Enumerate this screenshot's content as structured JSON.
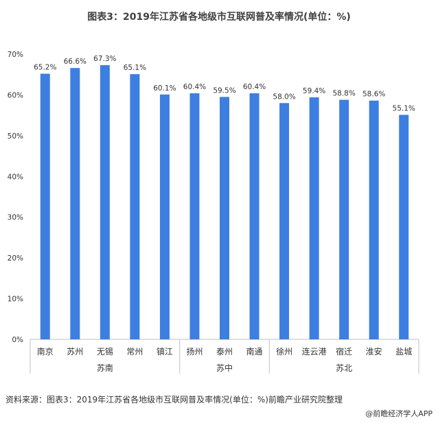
{
  "title": "图表3：2019年江苏省各地级市互联网普及率情况(单位：%)",
  "source": "资料来源：图表3：2019年江苏省各地级市互联网普及率情况(单位：%)前瞻产业研究院整理",
  "credit": "@前瞻经济学人APP",
  "colors": {
    "bar": "#3d7fe0",
    "axis": "#bfbfbf",
    "text": "#333333"
  },
  "chart_data": {
    "type": "bar",
    "title": "图表3：2019年江苏省各地级市互联网普及率情况(单位：%)",
    "categories": [
      "南京",
      "苏州",
      "无锡",
      "常州",
      "镇江",
      "扬州",
      "泰州",
      "南通",
      "徐州",
      "连云港",
      "宿迁",
      "淮安",
      "盐城"
    ],
    "values": [
      65.2,
      66.6,
      67.3,
      65.1,
      60.1,
      60.4,
      59.5,
      60.4,
      58.0,
      59.4,
      58.8,
      58.6,
      55.1
    ],
    "data_labels": [
      "65.2%",
      "66.6%",
      "67.3%",
      "65.1%",
      "60.1%",
      "60.4%",
      "59.5%",
      "60.4%",
      "58.0%",
      "59.4%",
      "58.8%",
      "58.6%",
      "55.1%"
    ],
    "groups": [
      {
        "name": "苏南",
        "count": 5
      },
      {
        "name": "苏中",
        "count": 3
      },
      {
        "name": "苏北",
        "count": 5
      }
    ],
    "yticks": [
      "0%",
      "10%",
      "20%",
      "30%",
      "40%",
      "50%",
      "60%",
      "70%"
    ],
    "ylim": [
      0,
      70
    ],
    "grid": false,
    "legend": "none"
  }
}
